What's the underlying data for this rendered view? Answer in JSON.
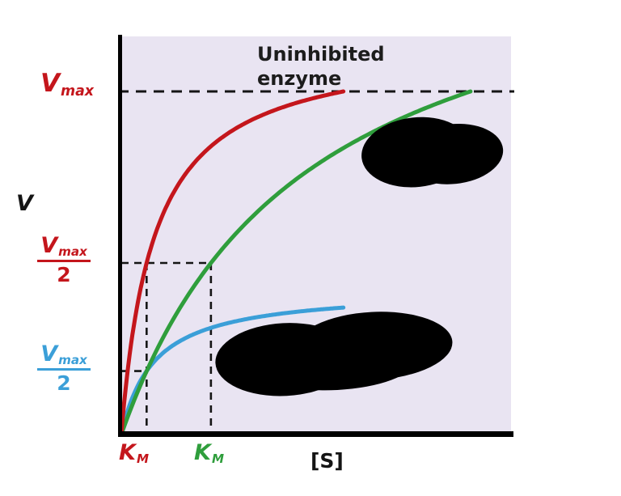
{
  "figure": {
    "page_bg": "#ffffff",
    "plot_bg": "#e9e4f2",
    "annotation": {
      "line1": "Uninhibited",
      "line2": "enzyme"
    },
    "y_axis_label": "V",
    "x_axis_label": "[S]",
    "vmax_label": {
      "base": "V",
      "sub": "max"
    },
    "half_denominator": "2",
    "km_label": {
      "base": "K",
      "sub": "M"
    },
    "colors": {
      "red_curve": "#c4161c",
      "green_curve": "#2f9e3c",
      "blue_curve": "#3b9fd8",
      "axis": "#000000",
      "dashed": "#151515",
      "redaction": "#000000"
    }
  },
  "chart_data": {
    "type": "line",
    "title": "",
    "x_axis_label": "[S]",
    "y_axis_label": "V",
    "x_range_relative": [
      0,
      1
    ],
    "y_range_relative": [
      0,
      1.16
    ],
    "grid": false,
    "legend": "none",
    "annotations": [
      {
        "text": "Uninhibited enzyme",
        "position": "top-center-of-plot"
      }
    ],
    "series": [
      {
        "name": "red-curve",
        "color": "#c4161c",
        "model": "michaelis_menten",
        "vmax": 1.0,
        "km": 0.065,
        "x_end": 0.57
      },
      {
        "name": "green-curve",
        "color": "#2f9e3c",
        "model": "michaelis_menten",
        "vmax": 1.0,
        "km": 0.23,
        "x_end": 0.896
      },
      {
        "name": "blue-curve",
        "color": "#3b9fd8",
        "model": "michaelis_menten",
        "vmax": 0.37,
        "km": 0.065,
        "x_end": 0.57
      }
    ],
    "guides": {
      "vmax_line_y": 1.0,
      "red_half_y": 0.5,
      "blue_half_y": 0.185,
      "red_km_x": 0.065,
      "green_km_x": 0.23
    }
  }
}
